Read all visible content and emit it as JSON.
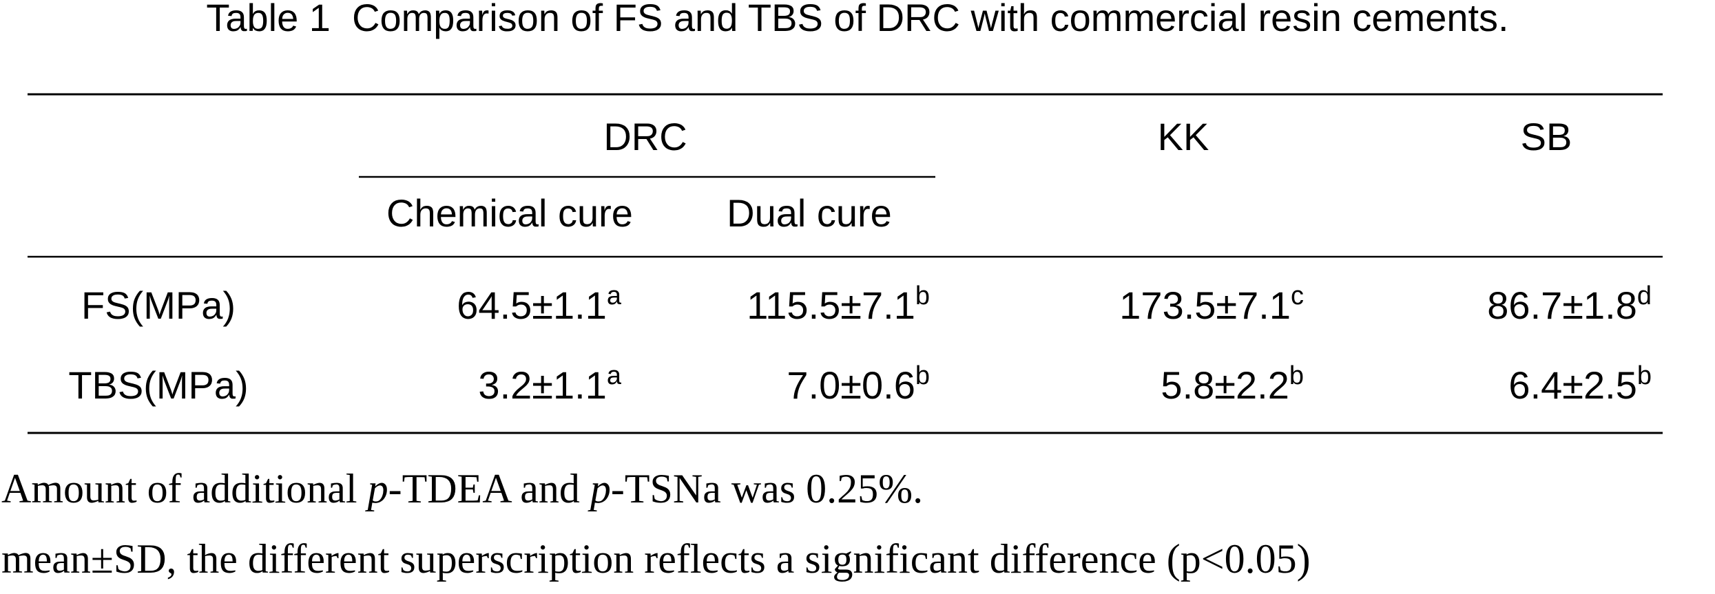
{
  "title": "Table 1  Comparison of FS and TBS of DRC with commercial resin cements.",
  "table": {
    "header": {
      "group": "DRC",
      "sub": [
        "Chemical cure",
        "Dual cure"
      ],
      "others": [
        "KK",
        "SB"
      ]
    },
    "rows": [
      {
        "label": "FS(MPa)",
        "cells": [
          {
            "value": "64.5±1.1",
            "sup": "a"
          },
          {
            "value": "115.5±7.1",
            "sup": "b"
          },
          {
            "value": "173.5±7.1",
            "sup": "c"
          },
          {
            "value": "86.7±1.8",
            "sup": "d"
          }
        ]
      },
      {
        "label": "TBS(MPa)",
        "cells": [
          {
            "value": "3.2±1.1",
            "sup": "a"
          },
          {
            "value": "7.0±0.6",
            "sup": "b"
          },
          {
            "value": "5.8±2.2",
            "sup": "b"
          },
          {
            "value": "6.4±2.5",
            "sup": "b"
          }
        ]
      }
    ]
  },
  "footnotes": [
    [
      "Amount of additional ",
      "p",
      "-TDEA and ",
      "p",
      "-TSNa was 0.25%."
    ],
    [
      "mean±SD, the different superscription reflects a significant difference (p<0.05)"
    ]
  ]
}
